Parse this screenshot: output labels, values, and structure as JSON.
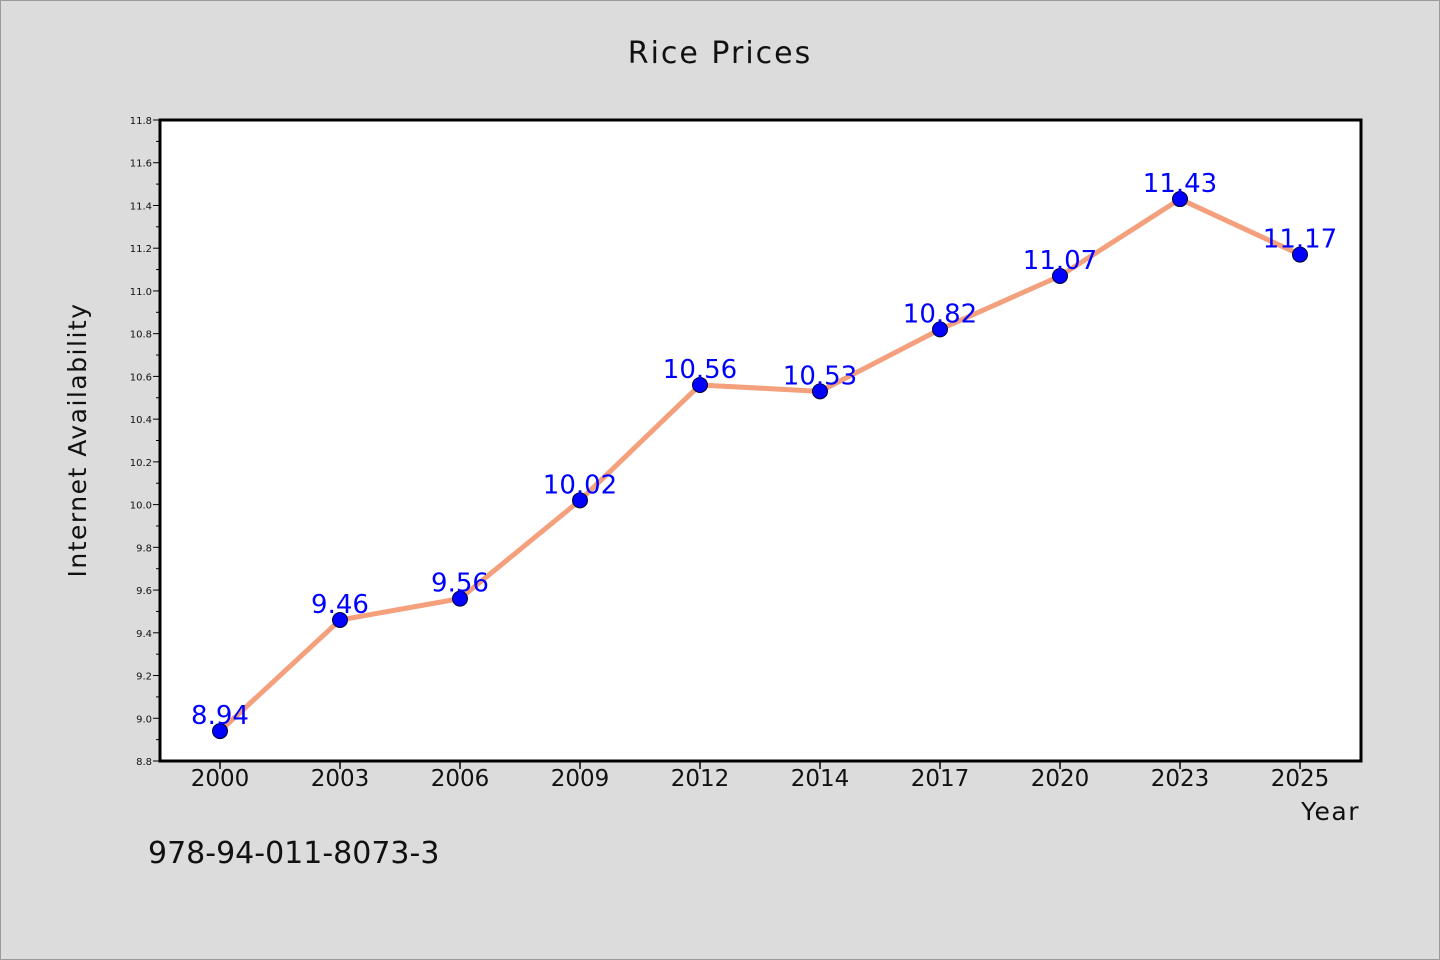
{
  "chart_data": {
    "type": "line",
    "title": "Rice Prices",
    "xlabel": "Year",
    "ylabel": "Internet Availability",
    "categories": [
      "2000",
      "2003",
      "2006",
      "2009",
      "2012",
      "2014",
      "2017",
      "2020",
      "2023",
      "2025"
    ],
    "series": [
      {
        "values": [
          8.94,
          9.46,
          9.56,
          10.02,
          10.56,
          10.53,
          10.82,
          11.07,
          11.43,
          11.17
        ],
        "data_labels": [
          "8.94",
          "9.46",
          "9.56",
          "10.02",
          "10.56",
          "10.53",
          "10.82",
          "11.07",
          "11.43",
          "11.17"
        ],
        "line_color": "#f4a07c",
        "marker_color": "#0000ff"
      }
    ],
    "ylim": [
      8.8,
      11.8
    ],
    "yticks": [
      "8.8",
      "9.0",
      "9.2",
      "9.4",
      "9.6",
      "9.8",
      "10.0",
      "10.2",
      "10.4",
      "10.6",
      "10.8",
      "11.0",
      "11.2",
      "11.4",
      "11.6",
      "11.8"
    ],
    "grid": false,
    "legend": "none"
  },
  "annotation": {
    "code": "978-94-011-8073-3"
  }
}
